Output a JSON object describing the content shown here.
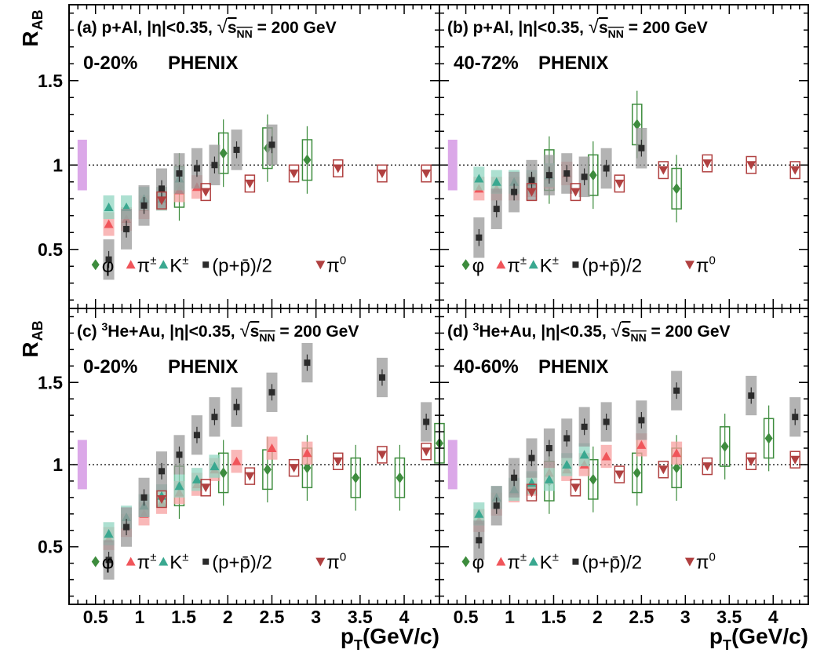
{
  "figure": {
    "y_axis_label": "R",
    "y_axis_label_sub": "AB",
    "x_axis_label": "p",
    "x_axis_label_sub": "T",
    "x_axis_label_unit": "(GeV/c)"
  },
  "colors": {
    "phi": "#3d8c3d",
    "pi_pm": "#f0555a",
    "k_pm": "#3aa890",
    "proton": "#2b2b2b",
    "pi0": "#b04040",
    "norm_box": "#dba8e8",
    "sys_phi": "#3d8c3d",
    "sys_pi_pm": "#f7a0a0",
    "sys_k_pm": "#92d6c2",
    "sys_proton": "#9a9a9a",
    "sys_pi0": "#b04040"
  },
  "chart_data": [
    {
      "type": "scatter",
      "panel": "(a)",
      "system": "p+Al",
      "eta_cut": "|η|<0.35",
      "energy_prefix": "s",
      "energy_sub": "NN",
      "energy_value": "= 200 GeV",
      "centrality": "0-20%",
      "experiment": "PHENIX",
      "xlim": [
        0.2,
        4.4
      ],
      "ylim": [
        0.15,
        1.95
      ],
      "xticks": [
        0.5,
        1,
        1.5,
        2,
        2.5,
        3,
        3.5,
        4
      ],
      "yticks": [
        0.5,
        1,
        1.5
      ],
      "legend": [
        "φ",
        "π±",
        "K±",
        "(p+p̄)/2",
        "π0"
      ],
      "series": [
        {
          "name": "φ",
          "x": [
            1.45,
            1.95,
            2.45,
            2.9
          ],
          "y": [
            0.87,
            1.07,
            1.1,
            1.03
          ]
        },
        {
          "name": "π±",
          "x": [
            0.65,
            0.85,
            1.05,
            1.25,
            1.45,
            1.65
          ],
          "y": [
            0.65,
            0.68,
            0.75,
            0.8,
            0.85,
            0.87
          ]
        },
        {
          "name": "K±",
          "x": [
            0.65,
            0.85,
            1.05,
            1.25,
            1.45
          ],
          "y": [
            0.75,
            0.75,
            0.8,
            0.8,
            0.92
          ]
        },
        {
          "name": "(p+p̄)/2",
          "x": [
            0.65,
            0.85,
            1.05,
            1.25,
            1.45,
            1.65,
            1.85,
            2.1,
            2.5
          ],
          "y": [
            0.44,
            0.62,
            0.76,
            0.86,
            0.95,
            0.98,
            1.0,
            1.09,
            1.12
          ]
        },
        {
          "name": "π0",
          "x": [
            1.25,
            1.75,
            2.25,
            2.75,
            3.25,
            3.75,
            4.25
          ],
          "y": [
            0.79,
            0.84,
            0.89,
            0.95,
            0.98,
            0.95,
            0.95
          ]
        }
      ]
    },
    {
      "type": "scatter",
      "panel": "(b)",
      "system": "p+Al",
      "eta_cut": "|η|<0.35",
      "energy_prefix": "s",
      "energy_sub": "NN",
      "energy_value": "= 200 GeV",
      "centrality": "40-72%",
      "experiment": "PHENIX",
      "xlim": [
        0.2,
        4.4
      ],
      "ylim": [
        0.15,
        1.95
      ],
      "xticks": [
        0.5,
        1,
        1.5,
        2,
        2.5,
        3,
        3.5,
        4
      ],
      "yticks": [
        0.5,
        1,
        1.5
      ],
      "legend": [
        "φ",
        "π±",
        "K±",
        "(p+p̄)/2",
        "π0"
      ],
      "series": [
        {
          "name": "φ",
          "x": [
            1.45,
            1.95,
            2.45,
            2.9
          ],
          "y": [
            0.97,
            0.94,
            1.24,
            0.86
          ]
        },
        {
          "name": "π±",
          "x": [
            0.65,
            0.85,
            1.05,
            1.25,
            1.45,
            1.65
          ],
          "y": [
            0.86,
            0.86,
            0.86,
            0.88,
            0.93,
            0.95
          ]
        },
        {
          "name": "K±",
          "x": [
            0.65,
            0.85,
            1.05,
            1.25,
            1.45
          ],
          "y": [
            0.92,
            0.9,
            0.9,
            0.9,
            0.94
          ]
        },
        {
          "name": "(p+p̄)/2",
          "x": [
            0.65,
            0.85,
            1.05,
            1.25,
            1.45,
            1.65,
            1.85,
            2.1,
            2.5
          ],
          "y": [
            0.57,
            0.74,
            0.84,
            0.91,
            0.94,
            0.95,
            0.93,
            0.98,
            1.1
          ]
        },
        {
          "name": "π0",
          "x": [
            1.25,
            1.75,
            2.25,
            2.75,
            3.25,
            3.75,
            4.25
          ],
          "y": [
            0.84,
            0.84,
            0.89,
            0.97,
            1.01,
            1.0,
            0.97
          ]
        }
      ]
    },
    {
      "type": "scatter",
      "panel": "(c)",
      "system": "He+Au",
      "system_prefix": "3",
      "eta_cut": "|η|<0.35",
      "energy_prefix": "s",
      "energy_sub": "NN",
      "energy_value": "= 200 GeV",
      "centrality": "0-20%",
      "experiment": "PHENIX",
      "xlim": [
        0.2,
        4.4
      ],
      "ylim": [
        0.15,
        1.95
      ],
      "xticks": [
        0.5,
        1,
        1.5,
        2,
        2.5,
        3,
        3.5,
        4
      ],
      "yticks": [
        0.5,
        1,
        1.5
      ],
      "legend": [
        "φ",
        "π±",
        "K±",
        "(p+p̄)/2",
        "π0"
      ],
      "series": [
        {
          "name": "φ",
          "x": [
            1.45,
            1.95,
            2.45,
            2.9,
            3.45,
            3.95,
            4.4
          ],
          "y": [
            0.87,
            0.95,
            0.97,
            0.98,
            0.92,
            0.92,
            1.13
          ]
        },
        {
          "name": "π±",
          "x": [
            0.65,
            0.85,
            1.05,
            1.25,
            1.45,
            1.65,
            1.85,
            2.1,
            2.5,
            2.9
          ],
          "y": [
            0.55,
            0.63,
            0.7,
            0.77,
            0.83,
            0.88,
            0.97,
            1.02,
            1.1,
            1.07
          ]
        },
        {
          "name": "K±",
          "x": [
            0.65,
            0.85,
            1.05,
            1.25,
            1.45,
            1.65,
            1.85
          ],
          "y": [
            0.58,
            0.68,
            0.75,
            0.81,
            0.87,
            0.91,
            0.99
          ]
        },
        {
          "name": "(p+p̄)/2",
          "x": [
            0.65,
            0.85,
            1.05,
            1.25,
            1.45,
            1.65,
            1.85,
            2.1,
            2.5,
            2.9,
            3.75,
            4.25
          ],
          "y": [
            0.42,
            0.62,
            0.8,
            0.96,
            1.06,
            1.18,
            1.29,
            1.35,
            1.44,
            1.62,
            1.53,
            1.26
          ]
        },
        {
          "name": "π0",
          "x": [
            1.25,
            1.75,
            2.25,
            2.75,
            3.25,
            3.75,
            4.25
          ],
          "y": [
            0.79,
            0.86,
            0.93,
            0.98,
            1.02,
            1.06,
            1.08
          ]
        }
      ]
    },
    {
      "type": "scatter",
      "panel": "(d)",
      "system": "He+Au",
      "system_prefix": "3",
      "eta_cut": "|η|<0.35",
      "energy_prefix": "s",
      "energy_sub": "NN",
      "energy_value": "= 200 GeV",
      "centrality": "40-60%",
      "experiment": "PHENIX",
      "xlim": [
        0.2,
        4.4
      ],
      "ylim": [
        0.15,
        1.95
      ],
      "xticks": [
        0.5,
        1,
        1.5,
        2,
        2.5,
        3,
        3.5,
        4
      ],
      "yticks": [
        0.5,
        1,
        1.5
      ],
      "legend": [
        "φ",
        "π±",
        "K±",
        "(p+p̄)/2",
        "π0"
      ],
      "series": [
        {
          "name": "φ",
          "x": [
            1.45,
            1.95,
            2.45,
            2.9,
            3.45,
            3.95
          ],
          "y": [
            0.9,
            0.91,
            0.95,
            0.98,
            1.11,
            1.16
          ]
        },
        {
          "name": "π±",
          "x": [
            0.65,
            0.85,
            1.05,
            1.25,
            1.45,
            1.65,
            1.85,
            2.1,
            2.5,
            2.9
          ],
          "y": [
            0.66,
            0.76,
            0.84,
            0.88,
            0.95,
            0.97,
            1.0,
            1.05,
            1.12,
            1.07
          ]
        },
        {
          "name": "K±",
          "x": [
            0.65,
            0.85,
            1.05,
            1.25,
            1.45,
            1.65,
            1.85
          ],
          "y": [
            0.7,
            0.8,
            0.85,
            0.89,
            0.91,
            1.0,
            1.06
          ]
        },
        {
          "name": "(p+p̄)/2",
          "x": [
            0.65,
            0.85,
            1.05,
            1.25,
            1.45,
            1.65,
            1.85,
            2.1,
            2.5,
            2.9,
            3.75,
            4.25
          ],
          "y": [
            0.54,
            0.75,
            0.92,
            1.04,
            1.1,
            1.16,
            1.23,
            1.26,
            1.27,
            1.45,
            1.42,
            1.29
          ]
        },
        {
          "name": "π0",
          "x": [
            1.25,
            1.75,
            2.25,
            2.75,
            3.25,
            3.75,
            4.25
          ],
          "y": [
            0.83,
            0.86,
            0.94,
            0.97,
            0.99,
            1.02,
            1.03
          ]
        }
      ]
    }
  ]
}
